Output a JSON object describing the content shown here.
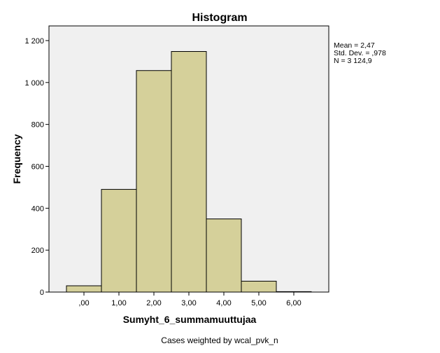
{
  "chart_data": {
    "type": "bar",
    "title": "Histogram",
    "xlabel": "Sumyht_6_summamuuttujaa",
    "ylabel": "Frequency",
    "bins": [
      {
        "start": -0.5,
        "end": 0.5,
        "value": 30
      },
      {
        "start": 0.5,
        "end": 1.5,
        "value": 490
      },
      {
        "start": 1.5,
        "end": 2.5,
        "value": 1057
      },
      {
        "start": 2.5,
        "end": 3.5,
        "value": 1148
      },
      {
        "start": 3.5,
        "end": 4.5,
        "value": 349
      },
      {
        "start": 4.5,
        "end": 5.5,
        "value": 52
      },
      {
        "start": 5.5,
        "end": 6.5,
        "value": 2
      }
    ],
    "xticks": [
      {
        "value": 0,
        "label": ",00"
      },
      {
        "value": 1,
        "label": "1,00"
      },
      {
        "value": 2,
        "label": "2,00"
      },
      {
        "value": 3,
        "label": "3,00"
      },
      {
        "value": 4,
        "label": "4,00"
      },
      {
        "value": 5,
        "label": "5,00"
      },
      {
        "value": 6,
        "label": "6,00"
      }
    ],
    "yticks": [
      {
        "value": 0,
        "label": "0"
      },
      {
        "value": 200,
        "label": "200"
      },
      {
        "value": 400,
        "label": "400"
      },
      {
        "value": 600,
        "label": "600"
      },
      {
        "value": 800,
        "label": "800"
      },
      {
        "value": 1000,
        "label": "1 000"
      },
      {
        "value": 1200,
        "label": "1 200"
      }
    ],
    "xlim": [
      -1,
      7
    ],
    "ylim": [
      0,
      1270
    ],
    "grid": false,
    "stats": {
      "mean": "Mean = 2,47",
      "std_dev": "Std. Dev. = ,978",
      "n": "N = 3 124,9"
    },
    "footnote": "Cases weighted by wcal_pvk_n",
    "colors": {
      "bar_fill": "#d5d09a",
      "bar_stroke": "#000000",
      "plot_bg": "#f0f0f0"
    }
  }
}
